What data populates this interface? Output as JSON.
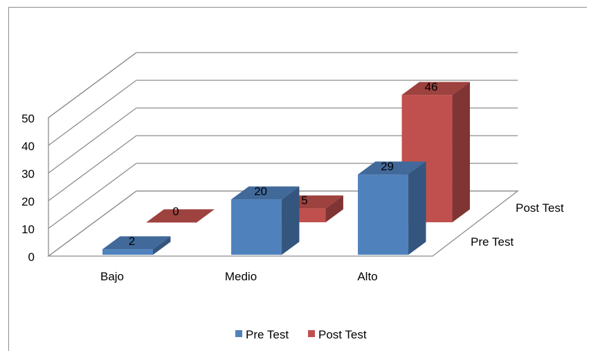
{
  "chart_data": {
    "type": "bar",
    "subtype": "3d-clustered-depth",
    "categories": [
      "Bajo",
      "Medio",
      "Alto"
    ],
    "series": [
      {
        "name": "Pre Test",
        "values": [
          2,
          20,
          29
        ],
        "color": "#4f81bd"
      },
      {
        "name": "Post Test",
        "values": [
          0,
          5,
          46
        ],
        "color": "#c0504d"
      }
    ],
    "depth_labels": [
      "Pre Test",
      "Post Test"
    ],
    "yticks": [
      0,
      10,
      20,
      30,
      40,
      50
    ],
    "ylim": [
      0,
      50
    ],
    "grid": true,
    "legend": "bottom",
    "data_labels": true
  }
}
